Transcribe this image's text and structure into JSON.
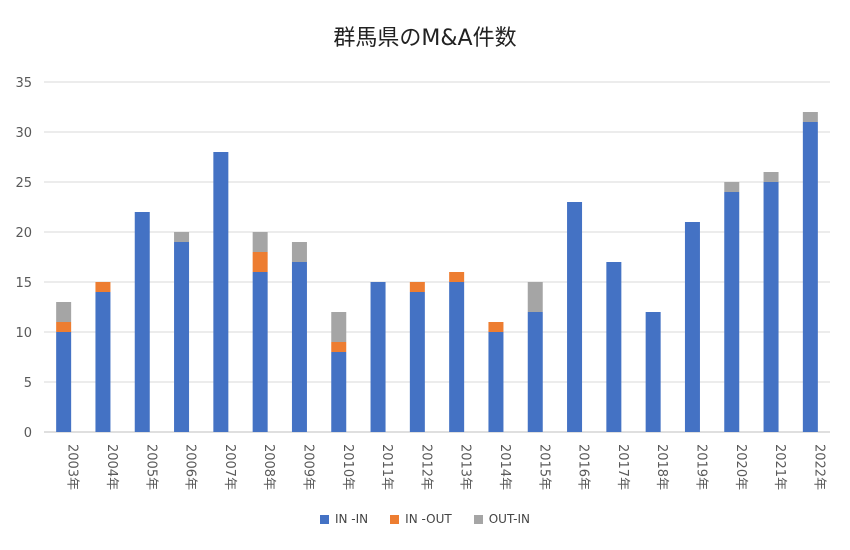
{
  "chart_data": {
    "type": "bar",
    "stacked": true,
    "title": "群馬県のM&A件数",
    "xlabel": "",
    "ylabel": "",
    "ylim": [
      0,
      35
    ],
    "yticks": [
      0,
      5,
      10,
      15,
      20,
      25,
      30,
      35
    ],
    "grid": true,
    "legend_position": "bottom",
    "categories": [
      "2003年",
      "2004年",
      "2005年",
      "2006年",
      "2007年",
      "2008年",
      "2009年",
      "2010年",
      "2011年",
      "2012年",
      "2013年",
      "2014年",
      "2015年",
      "2016年",
      "2017年",
      "2018年",
      "2019年",
      "2020年",
      "2021年",
      "2022年"
    ],
    "series": [
      {
        "name": "IN -IN",
        "color": "#4472C4",
        "values": [
          10,
          14,
          22,
          19,
          28,
          16,
          17,
          8,
          15,
          14,
          15,
          10,
          12,
          23,
          17,
          12,
          21,
          24,
          25,
          31
        ]
      },
      {
        "name": "IN -OUT",
        "color": "#ED7D31",
        "values": [
          1,
          1,
          0,
          0,
          0,
          2,
          0,
          1,
          0,
          1,
          1,
          1,
          0,
          0,
          0,
          0,
          0,
          0,
          0,
          0
        ]
      },
      {
        "name": "OUT-IN",
        "color": "#A5A5A5",
        "values": [
          2,
          0,
          0,
          1,
          0,
          2,
          2,
          3,
          0,
          0,
          0,
          0,
          3,
          0,
          0,
          0,
          0,
          1,
          1,
          1
        ]
      }
    ]
  }
}
